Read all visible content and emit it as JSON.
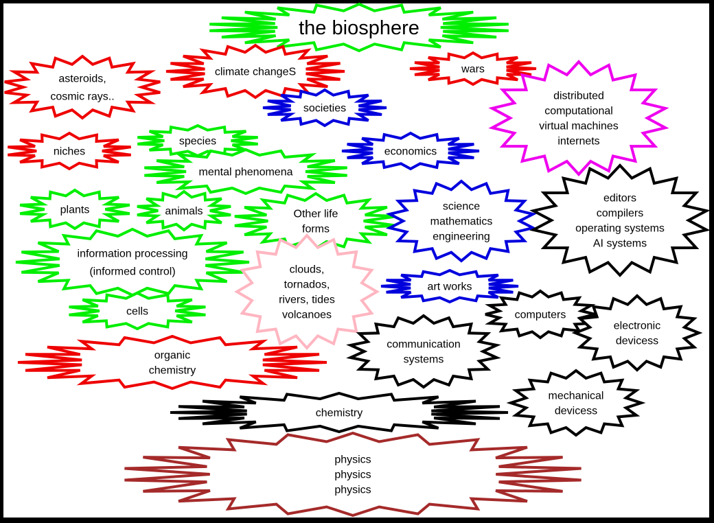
{
  "colors": {
    "frame": "#000000",
    "background": "#ffffff",
    "text": "#000000",
    "green": "#00ee00",
    "red": "#ee0000",
    "blue": "#0000dd",
    "magenta": "#ee00ee",
    "black": "#000000",
    "pink": "#ffb6c1",
    "brown": "#a52a2a"
  },
  "nodes": [
    {
      "id": "biosphere",
      "name": "node-the-biosphere",
      "color": "green",
      "lines": [
        "the biosphere"
      ],
      "title": true
    },
    {
      "id": "asteroids",
      "name": "node-asteroids-cosmic-rays",
      "color": "red",
      "lines": [
        "asteroids,",
        "cosmic rays.."
      ]
    },
    {
      "id": "climate",
      "name": "node-climate-changes",
      "color": "red",
      "lines": [
        "climate changeS"
      ]
    },
    {
      "id": "wars",
      "name": "node-wars",
      "color": "red",
      "lines": [
        "wars"
      ]
    },
    {
      "id": "societies",
      "name": "node-societies",
      "color": "blue",
      "lines": [
        "societies"
      ]
    },
    {
      "id": "distributed",
      "name": "node-distributed-computational-virtual-machines",
      "color": "magenta",
      "lines": [
        "distributed",
        "computational",
        "virtual machines",
        "internets"
      ]
    },
    {
      "id": "niches",
      "name": "node-niches",
      "color": "red",
      "lines": [
        "niches"
      ]
    },
    {
      "id": "species",
      "name": "node-species",
      "color": "green",
      "lines": [
        "species"
      ]
    },
    {
      "id": "economics",
      "name": "node-economics",
      "color": "blue",
      "lines": [
        "economics"
      ]
    },
    {
      "id": "mental",
      "name": "node-mental-phenomena",
      "color": "green",
      "lines": [
        "mental phenomena"
      ]
    },
    {
      "id": "plants",
      "name": "node-plants",
      "color": "green",
      "lines": [
        "plants"
      ]
    },
    {
      "id": "animals",
      "name": "node-animals",
      "color": "green",
      "lines": [
        "animals"
      ]
    },
    {
      "id": "otherlife",
      "name": "node-other-life-forms",
      "color": "green",
      "lines": [
        "Other life",
        "forms"
      ]
    },
    {
      "id": "science",
      "name": "node-science-mathematics-engineering",
      "color": "blue",
      "lines": [
        "science",
        "mathematics",
        "engineering"
      ]
    },
    {
      "id": "editors",
      "name": "node-editors-compilers-operating-systems",
      "color": "black",
      "lines": [
        "editors",
        "compilers",
        "operating systems",
        "AI systems"
      ]
    },
    {
      "id": "infoproc",
      "name": "node-information-processing",
      "color": "green",
      "lines": [
        "information processing",
        "(informed control)"
      ]
    },
    {
      "id": "clouds",
      "name": "node-clouds-tornados-rivers",
      "color": "pink",
      "lines": [
        "clouds,",
        "tornados,",
        "rivers, tides",
        "volcanoes"
      ]
    },
    {
      "id": "artworks",
      "name": "node-art-works",
      "color": "blue",
      "lines": [
        "art works"
      ]
    },
    {
      "id": "computers",
      "name": "node-computers",
      "color": "black",
      "lines": [
        "computers"
      ]
    },
    {
      "id": "cells",
      "name": "node-cells",
      "color": "green",
      "lines": [
        "cells"
      ]
    },
    {
      "id": "electronic",
      "name": "node-electronic-devicess",
      "color": "black",
      "lines": [
        "electronic",
        "devicess"
      ]
    },
    {
      "id": "communication",
      "name": "node-communication-systems",
      "color": "black",
      "lines": [
        "communication",
        "systems"
      ]
    },
    {
      "id": "organic",
      "name": "node-organic-chemistry",
      "color": "red",
      "lines": [
        "organic",
        "chemistry"
      ]
    },
    {
      "id": "mechanical",
      "name": "node-mechanical-devicess",
      "color": "black",
      "lines": [
        "mechanical",
        "devicess"
      ]
    },
    {
      "id": "chemistry",
      "name": "node-chemistry",
      "color": "black",
      "lines": [
        "chemistry"
      ]
    },
    {
      "id": "physics",
      "name": "node-physics",
      "color": "brown",
      "lines": [
        "physics",
        "physics",
        "physics"
      ]
    }
  ]
}
